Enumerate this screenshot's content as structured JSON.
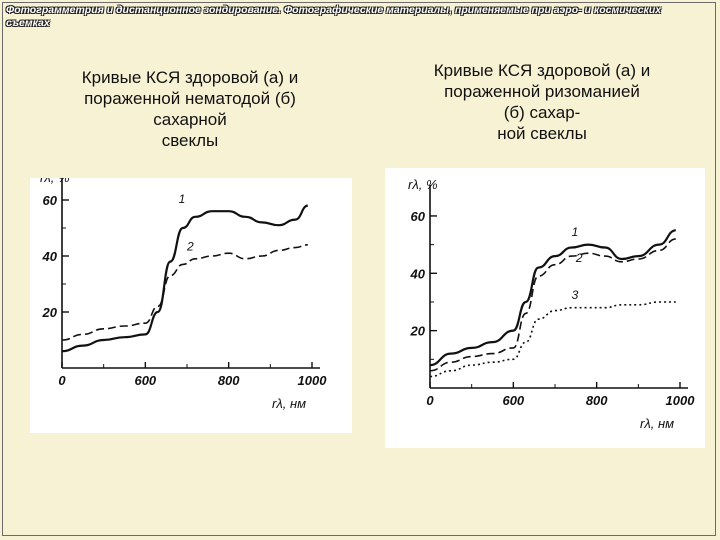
{
  "header": {
    "title": "Фотограмметрия и дистанционное зондирование. Фотографические материалы, применяемые при аэро- и космических съемках"
  },
  "left_panel": {
    "caption_lines": [
      "Кривые КСЯ здоровой (а) и",
      "пораженной нематодой (б)",
      "сахарной",
      "свеклы"
    ]
  },
  "right_panel": {
    "caption_lines": [
      "Кривые КСЯ здоровой (а) и",
      "пораженной ризоманией",
      "(б) сахар-",
      "ной свеклы"
    ]
  },
  "chart_data": [
    {
      "type": "line",
      "title": "",
      "xlabel": "rλ, нм",
      "ylabel": "rλ, %",
      "xlim": [
        400,
        1000
      ],
      "ylim": [
        0,
        65
      ],
      "x_ticks": [
        "0",
        "600",
        "800",
        "1000"
      ],
      "y_ticks": [
        "20",
        "40",
        "60"
      ],
      "series": [
        {
          "name": "1",
          "style": "solid",
          "points": [
            [
              400,
              6
            ],
            [
              450,
              8
            ],
            [
              500,
              10
            ],
            [
              550,
              11
            ],
            [
              600,
              12
            ],
            [
              630,
              20
            ],
            [
              660,
              38
            ],
            [
              690,
              50
            ],
            [
              720,
              54
            ],
            [
              760,
              56
            ],
            [
              800,
              56
            ],
            [
              840,
              54
            ],
            [
              880,
              52
            ],
            [
              920,
              51
            ],
            [
              960,
              53
            ],
            [
              990,
              58
            ]
          ]
        },
        {
          "name": "2",
          "style": "dashed",
          "points": [
            [
              400,
              10
            ],
            [
              450,
              12
            ],
            [
              500,
              14
            ],
            [
              550,
              15
            ],
            [
              600,
              16
            ],
            [
              630,
              22
            ],
            [
              660,
              33
            ],
            [
              690,
              37
            ],
            [
              720,
              39
            ],
            [
              760,
              40
            ],
            [
              800,
              41
            ],
            [
              840,
              39
            ],
            [
              880,
              40
            ],
            [
              920,
              42
            ],
            [
              960,
              43
            ],
            [
              990,
              44
            ]
          ]
        }
      ]
    },
    {
      "type": "line",
      "title": "",
      "xlabel": "rλ, нм",
      "ylabel": "rλ, %",
      "xlim": [
        400,
        1000
      ],
      "ylim": [
        0,
        68
      ],
      "x_ticks": [
        "0",
        "600",
        "800",
        "1000"
      ],
      "y_ticks": [
        "20",
        "40",
        "60"
      ],
      "series": [
        {
          "name": "1",
          "style": "solid",
          "points": [
            [
              400,
              8
            ],
            [
              450,
              12
            ],
            [
              500,
              14
            ],
            [
              550,
              16
            ],
            [
              600,
              20
            ],
            [
              630,
              30
            ],
            [
              660,
              42
            ],
            [
              700,
              46
            ],
            [
              740,
              49
            ],
            [
              780,
              50
            ],
            [
              820,
              49
            ],
            [
              860,
              45
            ],
            [
              900,
              46
            ],
            [
              950,
              50
            ],
            [
              990,
              55
            ]
          ]
        },
        {
          "name": "2",
          "style": "dashed",
          "points": [
            [
              400,
              6
            ],
            [
              450,
              9
            ],
            [
              500,
              11
            ],
            [
              550,
              12
            ],
            [
              600,
              14
            ],
            [
              630,
              26
            ],
            [
              660,
              39
            ],
            [
              700,
              43
            ],
            [
              740,
              46
            ],
            [
              780,
              47
            ],
            [
              820,
              46
            ],
            [
              860,
              44
            ],
            [
              900,
              45
            ],
            [
              950,
              48
            ],
            [
              990,
              52
            ]
          ]
        },
        {
          "name": "3",
          "style": "dotted",
          "points": [
            [
              400,
              4
            ],
            [
              450,
              6
            ],
            [
              500,
              8
            ],
            [
              550,
              9
            ],
            [
              600,
              10
            ],
            [
              630,
              16
            ],
            [
              660,
              24
            ],
            [
              700,
              27
            ],
            [
              740,
              28
            ],
            [
              780,
              28
            ],
            [
              820,
              28
            ],
            [
              860,
              29
            ],
            [
              900,
              29
            ],
            [
              950,
              30
            ],
            [
              990,
              30
            ]
          ]
        }
      ]
    }
  ]
}
